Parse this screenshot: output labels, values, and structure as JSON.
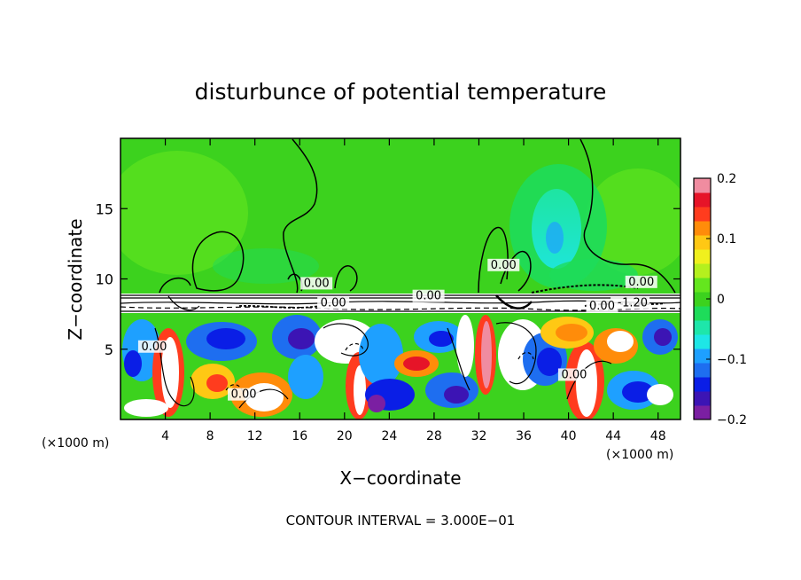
{
  "chart_data": {
    "type": "heatmap",
    "title": "disturbunce of potential temperature",
    "xlabel": "X−coordinate",
    "ylabel": "Z−coordinate",
    "x_unit_left": "(×1000 m)",
    "x_unit_right": "(×1000 m)",
    "footer": "CONTOUR INTERVAL = 3.000E−01",
    "xlim": [
      0,
      50
    ],
    "ylim": [
      0,
      20
    ],
    "x_ticks": [
      4,
      8,
      12,
      16,
      20,
      24,
      28,
      32,
      36,
      40,
      44,
      48
    ],
    "x_tick_labels": [
      "4",
      "8",
      "12",
      "16",
      "20",
      "24",
      "28",
      "32",
      "36",
      "40",
      "44",
      "48"
    ],
    "y_ticks": [
      5,
      10,
      15
    ],
    "y_tick_labels": [
      "5",
      "10",
      "15"
    ],
    "colorbar": {
      "range": [
        -0.2,
        0.2
      ],
      "ticks": [
        -0.2,
        -0.1,
        0,
        0.1,
        0.2
      ],
      "tick_labels": [
        "−0.2",
        "−0.1",
        "0",
        "0.1",
        "0.2"
      ],
      "colors": [
        "#7b1fa2",
        "#3c14b4",
        "#0a1ee6",
        "#1e6ef0",
        "#1ea0ff",
        "#1ee6e6",
        "#1ee6aa",
        "#1edc5a",
        "#3cd21e",
        "#64e61e",
        "#b4f01e",
        "#f0f01e",
        "#ffc814",
        "#ff8c0a",
        "#ff3c1e",
        "#e61428",
        "#f08ca0"
      ]
    },
    "contour_labels": [
      {
        "text": "0.00",
        "x": 17.5,
        "z": 9.5
      },
      {
        "text": "0.00",
        "x": 27.5,
        "z": 8.6
      },
      {
        "text": "0.00",
        "x": 34.2,
        "z": 10.8
      },
      {
        "text": "0.00",
        "x": 46.5,
        "z": 9.6
      },
      {
        "text": "0.00",
        "x": 19.0,
        "z": 8.1
      },
      {
        "text": "−1.20",
        "x": 45.5,
        "z": 8.1
      },
      {
        "text": "0.00",
        "x": 43.0,
        "z": 7.9
      },
      {
        "text": "0.00",
        "x": 40.5,
        "z": 3.0
      },
      {
        "text": "0.00",
        "x": 11.0,
        "z": 1.6
      },
      {
        "text": "0.00",
        "x": 3.0,
        "z": 5.0
      }
    ]
  },
  "colors": {
    "upper_field": "#3cd21e",
    "background": "#ffffff",
    "axis": "#000000"
  }
}
